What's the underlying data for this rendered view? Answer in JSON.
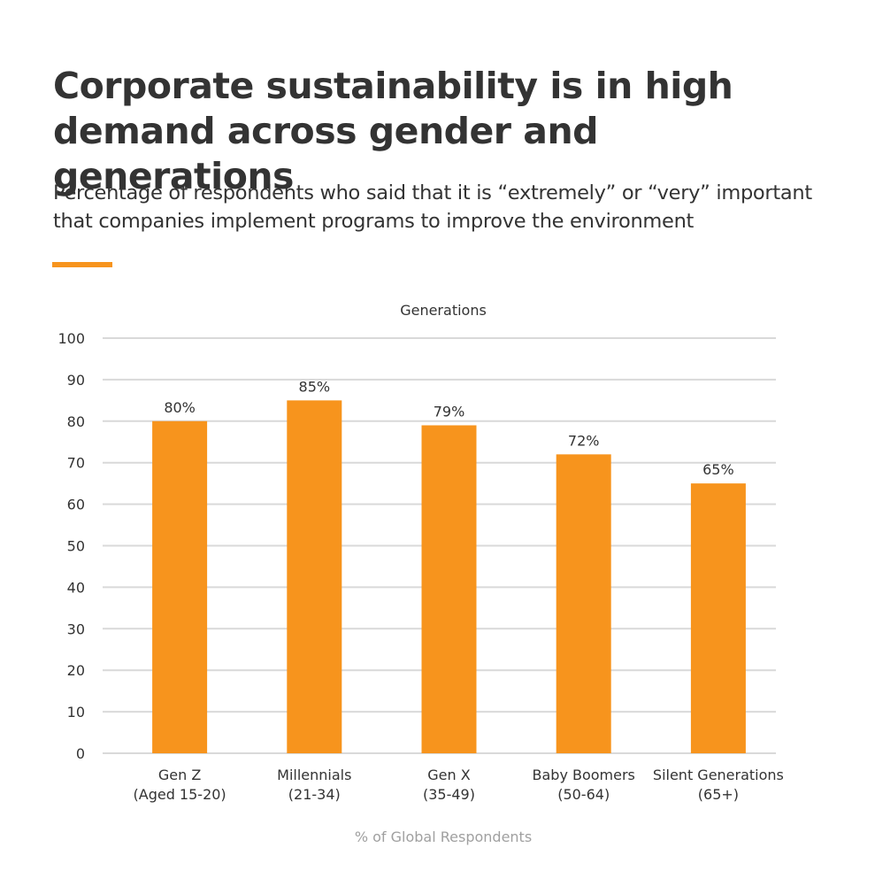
{
  "header": {
    "title": "Corporate sustainability is in high demand across gender and generations",
    "subtitle": "Percentage of respondents who said that it is “extremely” or “very” important that companies implement programs to improve the environment"
  },
  "colors": {
    "bar": "#f7941d",
    "accent": "#f7941d",
    "grid": "#d9d9d9",
    "text": "#333333",
    "muted": "#a0a0a0"
  },
  "chart_data": {
    "type": "bar",
    "title": "Generations",
    "xlabel": "% of Global Respondents",
    "ylabel": "",
    "ylim": [
      0,
      100
    ],
    "yticks": [
      0,
      10,
      20,
      30,
      40,
      50,
      60,
      70,
      80,
      90,
      100
    ],
    "grid": true,
    "categories": [
      [
        "Gen Z",
        "(Aged 15-20)"
      ],
      [
        "Millennials",
        "(21-34)"
      ],
      [
        "Gen X",
        "(35-49)"
      ],
      [
        "Baby Boomers",
        "(50-64)"
      ],
      [
        "Silent Generations",
        "(65+)"
      ]
    ],
    "values": [
      80,
      85,
      79,
      72,
      65
    ],
    "data_labels": [
      "80%",
      "85%",
      "79%",
      "72%",
      "65%"
    ]
  }
}
